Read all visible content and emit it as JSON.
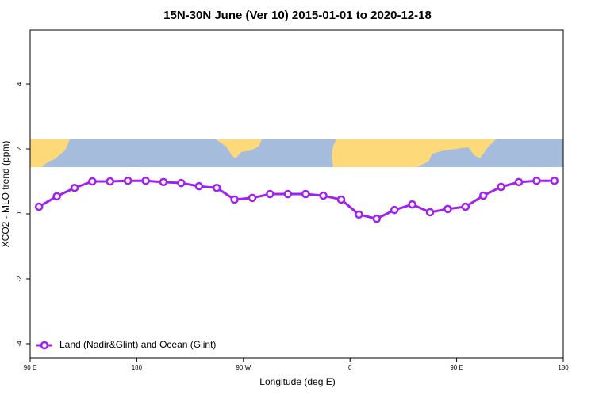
{
  "chart_data": {
    "type": "line",
    "title": "15N-30N June (Ver 10)   2015-01-01 to 2020-12-18",
    "x_label": "Longitude (deg E)",
    "y_label": "XCO2 - MLO trend (ppm)",
    "x": [
      97.5,
      112.5,
      127.5,
      142.5,
      157.5,
      172.5,
      187.5,
      202.5,
      217.5,
      232.5,
      247.5,
      262.5,
      277.5,
      292.5,
      307.5,
      322.5,
      337.5,
      352.5,
      367.5,
      382.5,
      397.5,
      412.5,
      427.5,
      442.5,
      457.5,
      472.5,
      487.5,
      502.5,
      517.5,
      532.5
    ],
    "series": [
      {
        "name": "Land (Nadir&Glint) and Ocean (Glint)",
        "color": "#a020f0",
        "values": [
          0.22,
          0.54,
          0.8,
          1.0,
          1.0,
          1.02,
          1.02,
          0.98,
          0.95,
          0.85,
          0.8,
          0.44,
          0.49,
          0.61,
          0.61,
          0.61,
          0.56,
          0.44,
          -0.02,
          -0.15,
          0.12,
          0.29,
          0.05,
          0.15,
          0.22,
          0.56,
          0.83,
          0.98,
          1.02,
          1.02
        ]
      }
    ],
    "xlim": [
      90,
      540
    ],
    "xticks": [
      {
        "value": 90,
        "label": "90 E"
      },
      180,
      {
        "value": 270,
        "label": "90 W"
      },
      {
        "value": 360,
        "label": "0"
      },
      {
        "value": 450,
        "label": "90 E"
      },
      {
        "value": 540,
        "label": "180"
      }
    ],
    "ylim": [
      -4.44,
      5.66
    ],
    "yticks": [
      -4,
      -2,
      0,
      2,
      4
    ],
    "legend": "bottom-left"
  }
}
